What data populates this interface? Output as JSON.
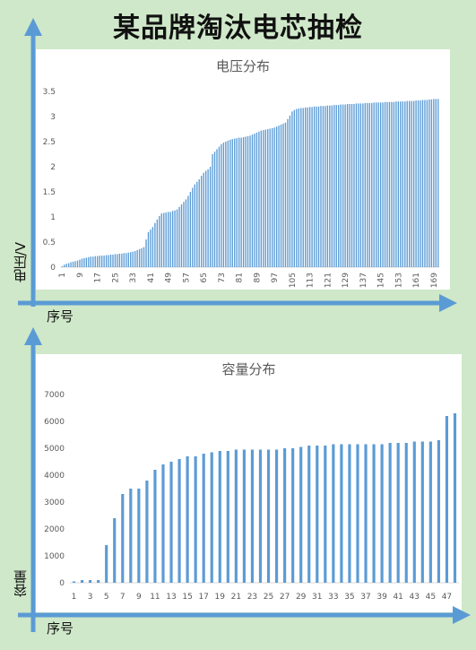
{
  "title": "某品牌淘汰电芯抽检",
  "chart_data": [
    {
      "type": "bar",
      "title": "电压分布",
      "ylabel": "电压/V",
      "xlabel": "序号",
      "ylim": [
        0,
        3.5
      ],
      "yticks": [
        "0",
        "0.5",
        "1",
        "1.5",
        "2",
        "2.5",
        "3",
        "3.5"
      ],
      "xtick_labels": [
        "1",
        "9",
        "17",
        "25",
        "33",
        "41",
        "49",
        "57",
        "65",
        "73",
        "81",
        "89",
        "97",
        "105",
        "113",
        "121",
        "129",
        "137",
        "145",
        "153",
        "161",
        "169"
      ],
      "xtick_start": 1,
      "xtick_step": 8,
      "color": "#5b9bd5",
      "values": [
        0.02,
        0.05,
        0.07,
        0.08,
        0.1,
        0.11,
        0.12,
        0.13,
        0.15,
        0.17,
        0.18,
        0.19,
        0.2,
        0.21,
        0.21,
        0.22,
        0.22,
        0.23,
        0.23,
        0.23,
        0.24,
        0.24,
        0.25,
        0.25,
        0.26,
        0.26,
        0.27,
        0.27,
        0.28,
        0.28,
        0.29,
        0.3,
        0.31,
        0.32,
        0.34,
        0.36,
        0.38,
        0.4,
        0.55,
        0.7,
        0.75,
        0.8,
        0.88,
        0.95,
        1.02,
        1.07,
        1.08,
        1.09,
        1.1,
        1.1,
        1.12,
        1.13,
        1.15,
        1.2,
        1.25,
        1.3,
        1.35,
        1.42,
        1.5,
        1.58,
        1.65,
        1.7,
        1.75,
        1.82,
        1.88,
        1.92,
        1.95,
        2.0,
        2.25,
        2.3,
        2.35,
        2.4,
        2.45,
        2.48,
        2.5,
        2.52,
        2.54,
        2.55,
        2.56,
        2.57,
        2.58,
        2.58,
        2.59,
        2.6,
        2.61,
        2.62,
        2.64,
        2.66,
        2.68,
        2.7,
        2.72,
        2.73,
        2.74,
        2.75,
        2.76,
        2.77,
        2.78,
        2.8,
        2.82,
        2.84,
        2.86,
        2.88,
        2.95,
        3.02,
        3.1,
        3.13,
        3.15,
        3.16,
        3.17,
        3.17,
        3.18,
        3.18,
        3.19,
        3.19,
        3.2,
        3.2,
        3.2,
        3.21,
        3.21,
        3.21,
        3.22,
        3.22,
        3.22,
        3.23,
        3.23,
        3.23,
        3.24,
        3.24,
        3.24,
        3.25,
        3.25,
        3.25,
        3.25,
        3.26,
        3.26,
        3.26,
        3.26,
        3.27,
        3.27,
        3.27,
        3.27,
        3.28,
        3.28,
        3.28,
        3.28,
        3.28,
        3.29,
        3.29,
        3.29,
        3.29,
        3.29,
        3.3,
        3.3,
        3.3,
        3.3,
        3.3,
        3.31,
        3.31,
        3.31,
        3.31,
        3.32,
        3.32,
        3.32,
        3.33,
        3.33,
        3.33,
        3.34,
        3.34,
        3.35,
        3.35,
        3.35
      ]
    },
    {
      "type": "bar",
      "title": "容量分布",
      "ylabel": "容量",
      "xlabel": "序号",
      "ylim": [
        0,
        7000
      ],
      "yticks": [
        "0",
        "1000",
        "2000",
        "3000",
        "4000",
        "5000",
        "6000",
        "7000"
      ],
      "xtick_labels": [
        "1",
        "3",
        "5",
        "7",
        "9",
        "11",
        "13",
        "15",
        "17",
        "19",
        "21",
        "23",
        "25",
        "27",
        "29",
        "31",
        "33",
        "35",
        "37",
        "39",
        "41",
        "43",
        "45",
        "47"
      ],
      "xtick_start": 1,
      "xtick_step": 2,
      "color": "#5b9bd5",
      "values": [
        50,
        100,
        100,
        100,
        1400,
        2400,
        3300,
        3500,
        3500,
        3800,
        4200,
        4400,
        4500,
        4600,
        4700,
        4700,
        4800,
        4850,
        4900,
        4900,
        4950,
        4950,
        4950,
        4950,
        4950,
        4950,
        5000,
        5000,
        5050,
        5100,
        5100,
        5100,
        5150,
        5150,
        5150,
        5150,
        5150,
        5150,
        5150,
        5200,
        5200,
        5200,
        5250,
        5250,
        5250,
        5300,
        6200,
        6300
      ]
    }
  ]
}
